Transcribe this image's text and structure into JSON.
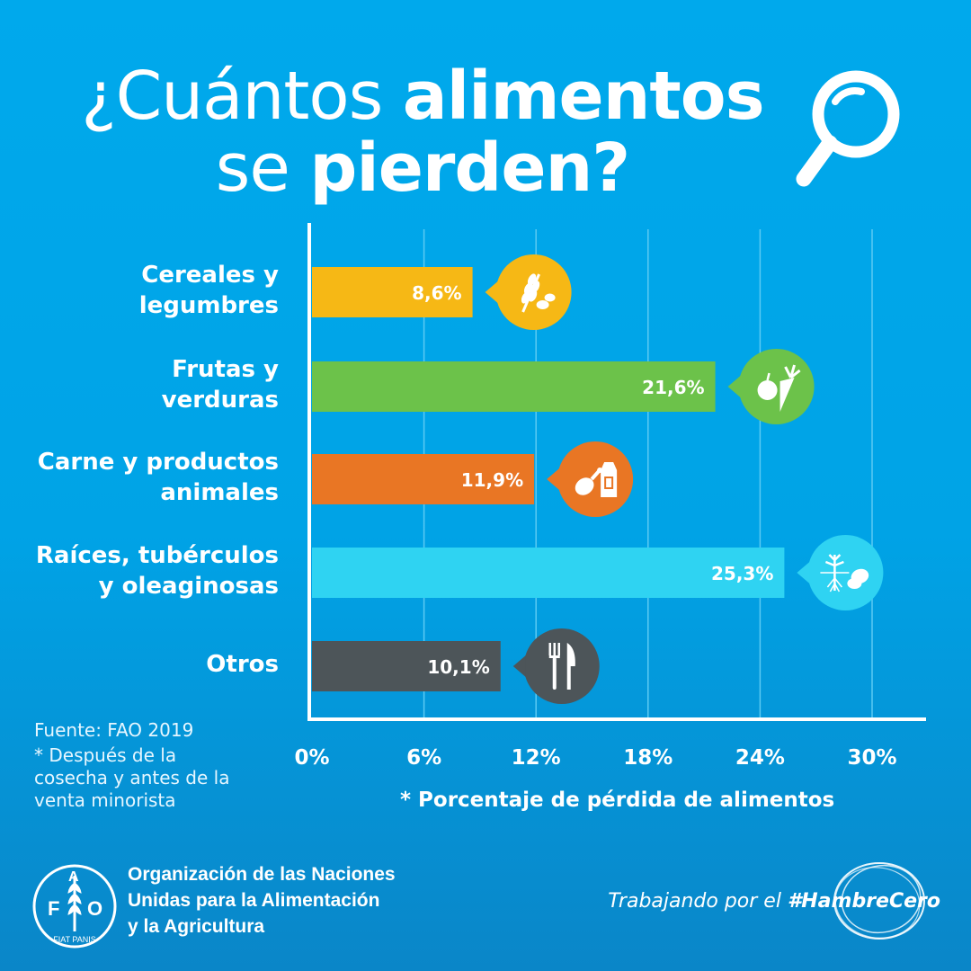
{
  "title": {
    "line1_regular": "¿Cuántos ",
    "line1_bold": "alimentos",
    "line2_regular": "se ",
    "line2_bold": "pierden?"
  },
  "icons": {
    "title": "magnifying-glass-icon",
    "logo": "fao-emblem-icon",
    "slogan": "zero-hunger-swirl-icon"
  },
  "chart_data": {
    "type": "bar",
    "orientation": "horizontal",
    "categories": [
      "Cereales y legumbres",
      "Frutas y verduras",
      "Carne y productos animales",
      "Raíces, tubérculos y oleaginosas",
      "Otros"
    ],
    "values": [
      8.6,
      21.6,
      11.9,
      25.3,
      10.1
    ],
    "value_labels": [
      "8,6%",
      "21,6%",
      "11,9%",
      "25,3%",
      "10,1%"
    ],
    "bar_colors": [
      "#f6b815",
      "#6cc24a",
      "#e97624",
      "#2fd3f2",
      "#4d5559"
    ],
    "bar_icons": [
      "grain-and-beans-icon",
      "apple-and-carrot-icon",
      "chicken-leg-and-milk-carton-icon",
      "root-plant-and-potato-icon",
      "fork-and-knife-icon"
    ],
    "xlim": [
      0,
      30
    ],
    "x_ticks": [
      0,
      6,
      12,
      18,
      24,
      30
    ],
    "x_tick_labels": [
      "0%",
      "6%",
      "12%",
      "18%",
      "24%",
      "30%"
    ],
    "xlabel": "* Porcentaje de pérdida de alimentos",
    "grid": true
  },
  "category_lines": [
    [
      "Cereales y",
      "legumbres"
    ],
    [
      "Frutas y",
      "verduras"
    ],
    [
      "Carne y productos",
      "animales"
    ],
    [
      "Raíces, tubérculos",
      "y oleaginosas"
    ],
    [
      "Otros"
    ]
  ],
  "notes": {
    "source": "Fuente: FAO 2019",
    "footnote_lines": [
      "* Después de la",
      "cosecha y antes de la",
      "venta minorista"
    ]
  },
  "footer": {
    "org_lines": [
      "Organización de las Naciones",
      "Unidas para la Alimentación",
      "y la Agricultura"
    ],
    "logo_letters": [
      "F",
      "A",
      "O"
    ],
    "logo_motto": "FIAT PANIS",
    "slogan_regular": "Trabajando por el ",
    "slogan_bold": "#HambreCero"
  },
  "colors": {
    "background": "#00a9ec",
    "text": "#ffffff",
    "grid": "#5ccaf3"
  }
}
